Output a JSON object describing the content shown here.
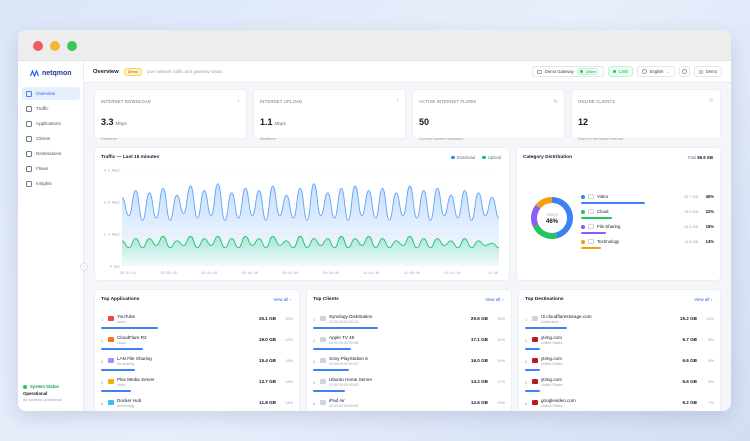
{
  "brand": {
    "name": "netqmon",
    "accent": "#2563eb"
  },
  "sidebar": {
    "items": [
      {
        "label": "Overview",
        "icon": "grid-icon",
        "active": true
      },
      {
        "label": "Traffic",
        "icon": "activity-icon"
      },
      {
        "label": "Applications",
        "icon": "apps-icon"
      },
      {
        "label": "Clients",
        "icon": "monitor-icon"
      },
      {
        "label": "Destinations",
        "icon": "globe-icon"
      },
      {
        "label": "Flows",
        "icon": "flows-icon"
      },
      {
        "label": "Insights",
        "icon": "lightbulb-icon"
      }
    ],
    "status": {
      "title": "System Status",
      "state": "Operational",
      "sub": "All systems operational"
    }
  },
  "topbar": {
    "title": "Overview",
    "badge": "Demo",
    "subtitle": "Live network traffic and gateway status",
    "gateway": "Demo Gateway",
    "gateway_status": "Online",
    "live": "LIVE",
    "language": "English",
    "user": "Demo"
  },
  "stats": [
    {
      "label": "INTERNET DOWNLOAD",
      "value": "3.3",
      "unit": "Mbps",
      "caption": "Realtime",
      "icon": "arrow-down-icon"
    },
    {
      "label": "INTERNET UPLOAD",
      "value": "1.1",
      "unit": "Mbps",
      "caption": "Realtime",
      "icon": "arrow-up-icon"
    },
    {
      "label": "ACTIVE INTERNET FLOWS",
      "value": "50",
      "unit": "",
      "caption": "Current tracked sessions",
      "icon": "pulse-icon"
    },
    {
      "label": "ONLINE CLIENTS",
      "value": "12",
      "unit": "",
      "caption": "Seen in the latest interval",
      "icon": "users-icon"
    }
  ],
  "traffic": {
    "title": "Traffic — Last 15 minutes",
    "legend": [
      "Download",
      "Upload"
    ],
    "colors": {
      "download": "#60a5fa",
      "upload": "#34d399"
    }
  },
  "chart_data": {
    "type": "line",
    "title": "Traffic — Last 15 minutes",
    "xlabel": "",
    "ylabel": "",
    "ylim": [
      0,
      4.2
    ],
    "yticks": [
      "4.2 Mbps",
      "2.8 Mbps",
      "1.4 Mbps",
      "0 bps"
    ],
    "xticks": [
      "20:31:51",
      "20:36:40",
      "20:41:40",
      "20:46:40",
      "20:51:40",
      "20:56:40",
      "21:01:40",
      "21:06:40",
      "21:11:40",
      "21:16"
    ],
    "series": [
      {
        "name": "Download",
        "color": "#60a5fa",
        "values": [
          3.0,
          2.2,
          3.3,
          2.0,
          3.2,
          2.1,
          3.4,
          2.0,
          3.1,
          2.3,
          3.5,
          2.1,
          3.3,
          2.2,
          3.6,
          2.0,
          3.2,
          2.1,
          3.4,
          2.2,
          3.3,
          2.0,
          3.5,
          2.2,
          3.1,
          2.1,
          3.4,
          2.0,
          3.6,
          2.2,
          3.2,
          2.1,
          3.4,
          2.0,
          3.5,
          2.2,
          3.3,
          2.1,
          3.4,
          2.0,
          3.2,
          2.2,
          3.5,
          2.1,
          3.3,
          2.0,
          3.4,
          2.2,
          3.1,
          2.1,
          3.3,
          2.0,
          3.2,
          2.2,
          3.0,
          2.1
        ]
      },
      {
        "name": "Upload",
        "color": "#34d399",
        "values": [
          1.1,
          0.8,
          1.2,
          0.8,
          1.2,
          0.9,
          1.3,
          0.8,
          1.1,
          0.9,
          1.3,
          0.8,
          1.2,
          0.9,
          1.3,
          0.8,
          1.2,
          0.8,
          1.3,
          0.9,
          1.2,
          0.8,
          1.3,
          0.9,
          1.1,
          0.8,
          1.3,
          0.8,
          1.2,
          0.9,
          1.2,
          0.8,
          1.3,
          0.8,
          1.2,
          0.9,
          1.3,
          0.8,
          1.2,
          0.8,
          1.1,
          0.9,
          1.3,
          0.8,
          1.2,
          0.8,
          1.2,
          0.9,
          1.1,
          0.8,
          1.2,
          0.8,
          1.1,
          0.9,
          1.0,
          0.8
        ]
      }
    ]
  },
  "category": {
    "title": "Category Distribution",
    "total_label": "Total",
    "total": "85.9 GB",
    "center_label": "VIDEO",
    "center_value": "46%",
    "items": [
      {
        "name": "Video",
        "value": "39.7 GB",
        "pct": "46%",
        "frac": 0.46,
        "color": "#3b82f6"
      },
      {
        "name": "Cloud",
        "value": "19.0 GB",
        "pct": "22%",
        "frac": 0.22,
        "color": "#22c55e"
      },
      {
        "name": "File Sharing",
        "value": "15.4 GB",
        "pct": "18%",
        "frac": 0.18,
        "color": "#8b5cf6"
      },
      {
        "name": "Technology",
        "value": "11.8 GB",
        "pct": "14%",
        "frac": 0.14,
        "color": "#f59e0b"
      }
    ]
  },
  "tables": [
    {
      "title": "Top Applications",
      "view_all": "View all",
      "rows": [
        {
          "name": "YouTube",
          "sub": "video",
          "value": "26.1 GB",
          "pct": "30%",
          "frac": 0.3,
          "icon": "youtube-icon",
          "color": "#ef4444"
        },
        {
          "name": "CloudFlare R2",
          "sub": "cloud",
          "value": "19.0 GB",
          "pct": "22%",
          "frac": 0.22,
          "icon": "cloudflare-icon",
          "color": "#f97316"
        },
        {
          "name": "LAN File Sharing",
          "sub": "file sharing",
          "value": "15.4 GB",
          "pct": "18%",
          "frac": 0.18,
          "icon": "folder-icon",
          "color": "#a78bfa"
        },
        {
          "name": "Plex Media Server",
          "sub": "video",
          "value": "13.7 GB",
          "pct": "16%",
          "frac": 0.16,
          "icon": "plex-icon",
          "color": "#eab308"
        },
        {
          "name": "Docker Hub",
          "sub": "technology",
          "value": "11.8 GB",
          "pct": "14%",
          "frac": 0.14,
          "icon": "docker-icon",
          "color": "#38bdf8"
        }
      ]
    },
    {
      "title": "Top Clients",
      "view_all": "View all",
      "rows": [
        {
          "name": "Synology DiskStation",
          "sub": "02:00:00:00:00:0A",
          "value": "29.6 GB",
          "pct": "34%",
          "frac": 0.34,
          "icon": "server-icon",
          "color": "#cbd5e1"
        },
        {
          "name": "Apple TV 4K",
          "sub": "02:00:00:00:00:0B",
          "value": "17.1 GB",
          "pct": "20%",
          "frac": 0.2,
          "icon": "tv-icon",
          "color": "#cbd5e1"
        },
        {
          "name": "Sony PlayStation 5",
          "sub": "02:00:00:00:00:0C",
          "value": "16.0 GB",
          "pct": "19%",
          "frac": 0.19,
          "icon": "gamepad-icon",
          "color": "#cbd5e1"
        },
        {
          "name": "Ubuntu Home Server",
          "sub": "02:00:00:00:00:0D",
          "value": "14.2 GB",
          "pct": "17%",
          "frac": 0.17,
          "icon": "server-icon",
          "color": "#cbd5e1"
        },
        {
          "name": "iPad Air",
          "sub": "02:00:00:00:00:0E",
          "value": "12.6 GB",
          "pct": "15%",
          "frac": 0.15,
          "icon": "tablet-icon",
          "color": "#cbd5e1"
        }
      ]
    },
    {
      "title": "Top Destinations",
      "view_all": "View all",
      "rows": [
        {
          "name": "r2.cloudflarestorage.com",
          "sub": "Destination",
          "value": "19.2 GB",
          "pct": "22%",
          "frac": 0.22,
          "icon": "globe-icon",
          "color": "#cbd5e1"
        },
        {
          "name": "ytimg.com",
          "sub": "United States",
          "value": "6.7 GB",
          "pct": "8%",
          "frac": 0.08,
          "icon": "flag-us-icon",
          "color": "#b91c1c"
        },
        {
          "name": "ytimg.com",
          "sub": "United States",
          "value": "6.6 GB",
          "pct": "8%",
          "frac": 0.08,
          "icon": "flag-us-icon",
          "color": "#b91c1c"
        },
        {
          "name": "ytimg.com",
          "sub": "United States",
          "value": "6.6 GB",
          "pct": "8%",
          "frac": 0.08,
          "icon": "flag-us-icon",
          "color": "#b91c1c"
        },
        {
          "name": "googlevideo.com",
          "sub": "United States",
          "value": "6.2 GB",
          "pct": "7%",
          "frac": 0.07,
          "icon": "flag-us-icon",
          "color": "#b91c1c"
        }
      ]
    }
  ]
}
